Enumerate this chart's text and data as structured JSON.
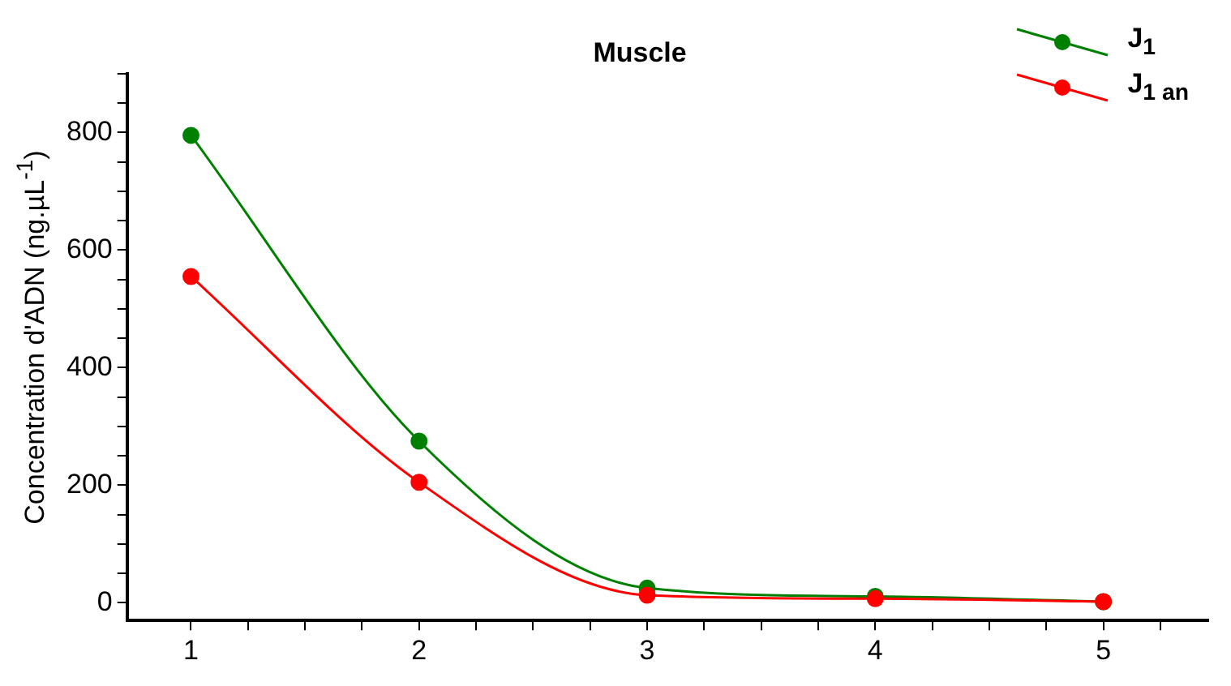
{
  "chart_data": {
    "type": "line",
    "title": "Muscle",
    "ylabel": "Concentration d'ADN (ng.µL$^{-1}$)",
    "x": [
      1,
      2,
      3,
      4,
      5
    ],
    "series": [
      {
        "name": "J$_{1}$",
        "color": "#008000",
        "values": [
          795,
          275,
          25,
          11,
          2
        ]
      },
      {
        "name": "J$_{1 an}$",
        "color": "#ff0000",
        "values": [
          555,
          205,
          13,
          7,
          2
        ]
      }
    ],
    "xlim": [
      0.72,
      5.46
    ],
    "xticks": [
      1,
      {
        "value": 1.25,
        "label": null
      },
      {
        "value": 1.5,
        "label": null
      },
      {
        "value": 1.75,
        "label": null
      },
      2,
      {
        "value": 2.25,
        "label": null
      },
      {
        "value": 2.5,
        "label": null
      },
      {
        "value": 2.75,
        "label": null
      },
      3,
      {
        "value": 3.25,
        "label": null
      },
      {
        "value": 3.5,
        "label": null
      },
      {
        "value": 3.75,
        "label": null
      },
      4,
      {
        "value": 4.25,
        "label": null
      },
      {
        "value": 4.5,
        "label": null
      },
      {
        "value": 4.75,
        "label": null
      },
      5,
      {
        "value": 5.25,
        "label": null
      }
    ],
    "ylim": [
      -30,
      900
    ],
    "yticks": [
      0,
      {
        "value": 50,
        "label": null
      },
      {
        "value": 100,
        "label": null
      },
      {
        "value": 150,
        "label": null
      },
      200,
      {
        "value": 250,
        "label": null
      },
      {
        "value": 300,
        "label": null
      },
      {
        "value": 350,
        "label": null
      },
      400,
      {
        "value": 450,
        "label": null
      },
      {
        "value": 500,
        "label": null
      },
      {
        "value": 550,
        "label": null
      },
      600,
      {
        "value": 650,
        "label": null
      },
      {
        "value": 700,
        "label": null
      },
      {
        "value": 750,
        "label": null
      },
      800,
      {
        "value": 850,
        "label": null
      },
      {
        "value": 900,
        "label": null
      }
    ],
    "grid": false,
    "legend": "top right",
    "marker": "circle",
    "line_style": "solid"
  }
}
